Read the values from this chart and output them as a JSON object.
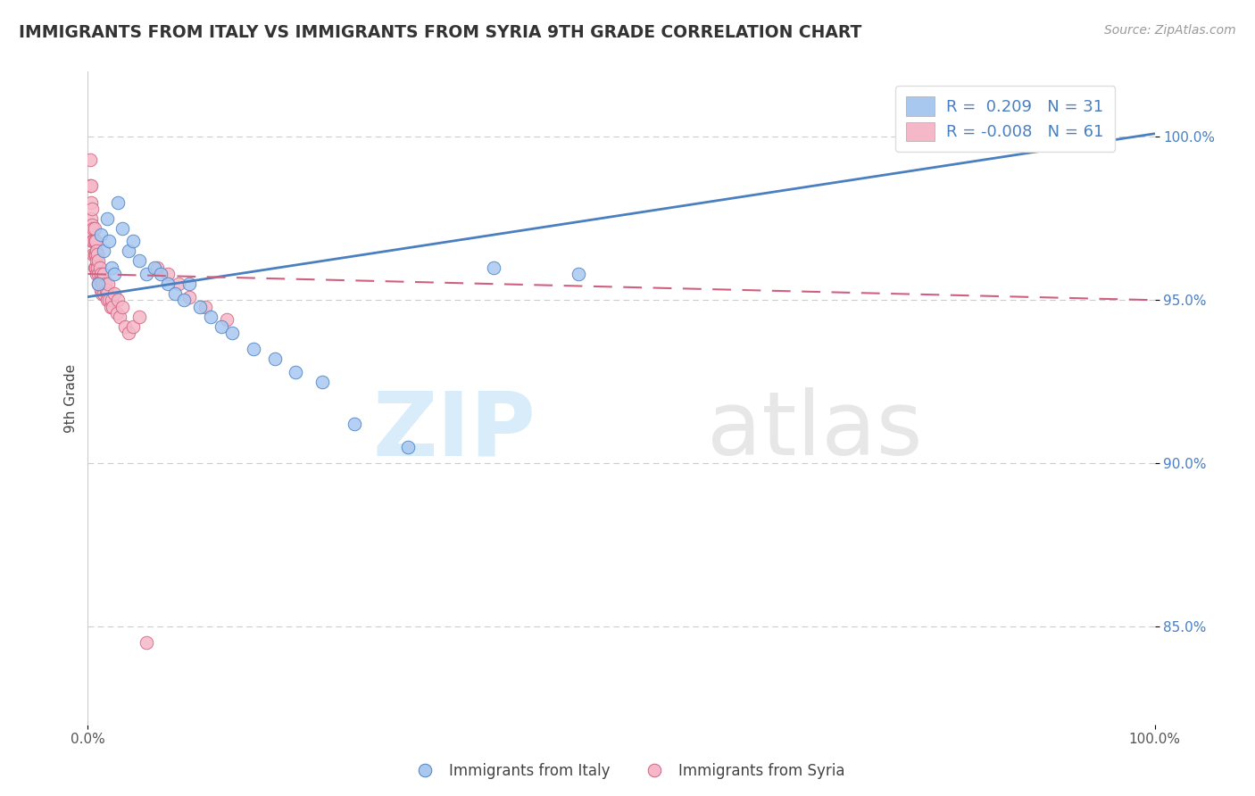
{
  "title": "IMMIGRANTS FROM ITALY VS IMMIGRANTS FROM SYRIA 9TH GRADE CORRELATION CHART",
  "source": "Source: ZipAtlas.com",
  "ylabel": "9th Grade",
  "xlim": [
    0.0,
    1.0
  ],
  "ylim": [
    0.82,
    1.02
  ],
  "y_tick_vals": [
    0.85,
    0.9,
    0.95,
    1.0
  ],
  "color_italy": "#a8c8f0",
  "color_syria": "#f5b8c8",
  "color_italy_line": "#4a7fc0",
  "color_syria_line": "#d06080",
  "italy_x": [
    0.01,
    0.012,
    0.015,
    0.018,
    0.02,
    0.022,
    0.025,
    0.028,
    0.032,
    0.038,
    0.042,
    0.048,
    0.055,
    0.062,
    0.068,
    0.075,
    0.082,
    0.09,
    0.095,
    0.105,
    0.115,
    0.125,
    0.135,
    0.155,
    0.175,
    0.195,
    0.22,
    0.25,
    0.3,
    0.38,
    0.46
  ],
  "italy_y": [
    0.955,
    0.97,
    0.965,
    0.975,
    0.968,
    0.96,
    0.958,
    0.98,
    0.972,
    0.965,
    0.968,
    0.962,
    0.958,
    0.96,
    0.958,
    0.955,
    0.952,
    0.95,
    0.955,
    0.948,
    0.945,
    0.942,
    0.94,
    0.935,
    0.932,
    0.928,
    0.925,
    0.912,
    0.905,
    0.96,
    0.958
  ],
  "syria_x": [
    0.002,
    0.002,
    0.003,
    0.003,
    0.003,
    0.003,
    0.004,
    0.004,
    0.004,
    0.005,
    0.005,
    0.005,
    0.006,
    0.006,
    0.006,
    0.006,
    0.007,
    0.007,
    0.007,
    0.008,
    0.008,
    0.008,
    0.009,
    0.009,
    0.01,
    0.01,
    0.01,
    0.011,
    0.011,
    0.012,
    0.012,
    0.013,
    0.013,
    0.014,
    0.015,
    0.015,
    0.016,
    0.017,
    0.018,
    0.018,
    0.019,
    0.02,
    0.021,
    0.022,
    0.023,
    0.025,
    0.027,
    0.028,
    0.03,
    0.032,
    0.035,
    0.038,
    0.042,
    0.048,
    0.055,
    0.065,
    0.075,
    0.085,
    0.095,
    0.11,
    0.13
  ],
  "syria_y": [
    0.993,
    0.985,
    0.985,
    0.98,
    0.975,
    0.97,
    0.978,
    0.973,
    0.968,
    0.972,
    0.968,
    0.964,
    0.972,
    0.968,
    0.964,
    0.96,
    0.968,
    0.964,
    0.96,
    0.965,
    0.962,
    0.958,
    0.964,
    0.96,
    0.962,
    0.958,
    0.955,
    0.96,
    0.956,
    0.958,
    0.953,
    0.956,
    0.952,
    0.955,
    0.952,
    0.958,
    0.955,
    0.953,
    0.952,
    0.95,
    0.955,
    0.95,
    0.948,
    0.95,
    0.948,
    0.952,
    0.946,
    0.95,
    0.945,
    0.948,
    0.942,
    0.94,
    0.942,
    0.945,
    0.845,
    0.96,
    0.958,
    0.955,
    0.951,
    0.948,
    0.944
  ],
  "italy_line_x0": 0.0,
  "italy_line_x1": 1.0,
  "italy_line_y0": 0.951,
  "italy_line_y1": 1.001,
  "syria_line_x0": 0.0,
  "syria_line_x1": 1.0,
  "syria_line_y0": 0.958,
  "syria_line_y1": 0.95
}
